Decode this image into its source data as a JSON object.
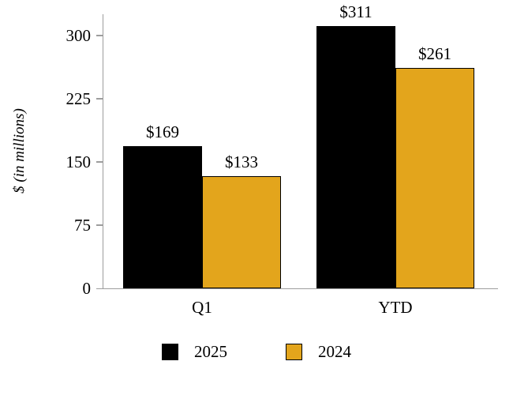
{
  "chart_data": {
    "type": "bar",
    "title": "",
    "xlabel": "",
    "ylabel": "$ (in millions)",
    "categories": [
      "Q1",
      "YTD"
    ],
    "series": [
      {
        "name": "2025",
        "color": "#000000",
        "values": [
          169,
          311
        ],
        "labels": [
          "$169",
          "$311"
        ]
      },
      {
        "name": "2024",
        "color": "#E3A51C",
        "values": [
          133,
          261
        ],
        "labels": [
          "$133",
          "$261"
        ]
      }
    ],
    "ylim": [
      0,
      325
    ],
    "yticks": [
      0,
      75,
      150,
      225,
      300
    ],
    "grid": false,
    "legend_position": "bottom",
    "axis_color": "#9d9d9d"
  }
}
